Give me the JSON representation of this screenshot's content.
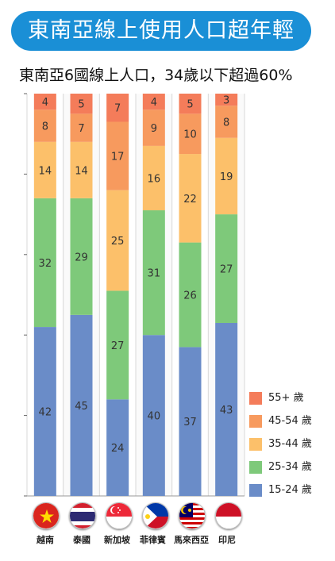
{
  "header": {
    "title": "東南亞線上使用人口超年輕"
  },
  "chart_data": {
    "type": "bar",
    "stacked": true,
    "title": "東南亞6國線上人口，34歲以下超過60%",
    "categories": [
      "越南",
      "泰國",
      "新加坡",
      "菲律賓",
      "馬來西亞",
      "印尼"
    ],
    "series": [
      {
        "name": "15-24 歲",
        "color": "#6a8cc8",
        "values": [
          42,
          45,
          24,
          40,
          37,
          43
        ]
      },
      {
        "name": "25-34 歲",
        "color": "#7ec97a",
        "values": [
          32,
          29,
          27,
          31,
          26,
          27
        ]
      },
      {
        "name": "35-44 歲",
        "color": "#fcc06a",
        "values": [
          14,
          14,
          25,
          16,
          22,
          19
        ]
      },
      {
        "name": "45-54 歲",
        "color": "#f79a5e",
        "values": [
          8,
          7,
          17,
          9,
          10,
          8
        ]
      },
      {
        "name": "55+ 歲",
        "color": "#f47c5a",
        "values": [
          4,
          5,
          7,
          4,
          5,
          3
        ]
      }
    ],
    "ylim": [
      0,
      100
    ],
    "grid": true,
    "legend_position": "bottom-right"
  },
  "flags": [
    {
      "country": "越南",
      "icon": "vietnam-flag-icon"
    },
    {
      "country": "泰國",
      "icon": "thailand-flag-icon"
    },
    {
      "country": "新加坡",
      "icon": "singapore-flag-icon"
    },
    {
      "country": "菲律賓",
      "icon": "philippines-flag-icon"
    },
    {
      "country": "馬來西亞",
      "icon": "malaysia-flag-icon"
    },
    {
      "country": "印尼",
      "icon": "indonesia-flag-icon"
    }
  ]
}
